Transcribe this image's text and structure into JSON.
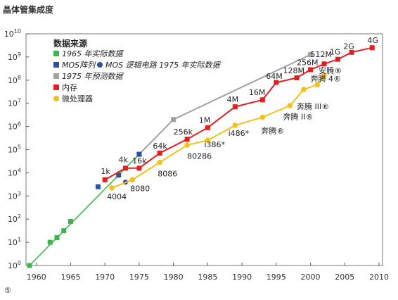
{
  "chart_data": {
    "type": "line",
    "title": "",
    "ylabel": "晶体管集成度",
    "xlabel": "",
    "footnote": "⑤",
    "xlim": [
      1959,
      2010
    ],
    "ylim_exponent": [
      0,
      10
    ],
    "y_scale": "log",
    "x_ticks": [
      1960,
      1965,
      1970,
      1975,
      1980,
      1985,
      1990,
      1995,
      2000,
      2005,
      2010
    ],
    "y_ticks": [
      {
        "exp": 0,
        "label": "10",
        "sup": "0"
      },
      {
        "exp": 1,
        "label": "10",
        "sup": "1"
      },
      {
        "exp": 2,
        "label": "10",
        "sup": "2"
      },
      {
        "exp": 3,
        "label": "10",
        "sup": "3"
      },
      {
        "exp": 4,
        "label": "10",
        "sup": "4"
      },
      {
        "exp": 5,
        "label": "10",
        "sup": "5"
      },
      {
        "exp": 6,
        "label": "10",
        "sup": "6"
      },
      {
        "exp": 7,
        "label": "10",
        "sup": "7"
      },
      {
        "exp": 8,
        "label": "10",
        "sup": "8"
      },
      {
        "exp": 9,
        "label": "10",
        "sup": "9"
      },
      {
        "exp": 10,
        "label": "10",
        "sup": "10"
      }
    ],
    "legend_title": "数据来源",
    "legend": [
      {
        "marker": "square",
        "color": "#3cb54a",
        "text": "1965 年实际数据",
        "italic": true
      },
      {
        "marker": "square",
        "color": "#2f4fa6",
        "text": "MOS阵列",
        "italic": true,
        "extra_marker": "circle",
        "extra_color": "#2f4fa6",
        "extra_text": "MOS 逻辑电路  1975 年实际数据"
      },
      {
        "marker": "square",
        "color": "#a0a0a0",
        "text": "1975 年预测数据",
        "italic": true
      },
      {
        "marker": "square",
        "color": "#e02020",
        "text": "内存",
        "italic": false
      },
      {
        "marker": "circle",
        "color": "#f2c11c",
        "text": "微处理器",
        "italic": false
      }
    ],
    "series": [
      {
        "kind": "green",
        "color": "#3cb54a",
        "line_points": [
          [
            1959,
            0
          ],
          [
            1975,
            4.8
          ]
        ],
        "markers": [
          [
            1959,
            0
          ],
          [
            1962,
            1.0
          ],
          [
            1963,
            1.2
          ],
          [
            1964,
            1.5
          ],
          [
            1965,
            1.9
          ],
          [
            1975,
            4.8
          ]
        ]
      },
      {
        "kind": "gray",
        "color": "#a0a0a0",
        "line_points": [
          [
            1975,
            4.8
          ],
          [
            1980,
            6.3
          ],
          [
            2000,
            9.1
          ]
        ],
        "markers": [
          [
            1980,
            6.3
          ],
          [
            2000,
            9.1
          ]
        ]
      },
      {
        "kind": "blue_squares",
        "color": "#2f4fa6",
        "markers": [
          [
            1969,
            3.4
          ],
          [
            1972,
            3.9
          ],
          [
            1975,
            4.8
          ]
        ]
      },
      {
        "kind": "blue_circles",
        "color": "#2f4fa6",
        "markers": [
          [
            1973,
            3.6
          ]
        ]
      },
      {
        "kind": "memory",
        "color": "#e02020",
        "points": [
          [
            1970,
            3.7
          ],
          [
            1973,
            4.2
          ],
          [
            1975,
            4.2
          ],
          [
            1978,
            4.85
          ],
          [
            1982,
            5.45
          ],
          [
            1985,
            5.95
          ],
          [
            1989,
            6.85
          ],
          [
            1993,
            7.15
          ],
          [
            1995,
            7.9
          ],
          [
            1998,
            8.1
          ],
          [
            2000,
            8.45
          ],
          [
            2002,
            8.7
          ],
          [
            2004,
            8.9
          ],
          [
            2006,
            9.2
          ],
          [
            2009,
            9.4
          ]
        ]
      },
      {
        "kind": "microprocessor",
        "color": "#f2c11c",
        "points": [
          [
            1971,
            3.35
          ],
          [
            1974,
            3.7
          ],
          [
            1978,
            4.45
          ],
          [
            1982,
            5.2
          ],
          [
            1985,
            5.4
          ],
          [
            1989,
            6.05
          ],
          [
            1993,
            6.4
          ],
          [
            1997,
            6.9
          ],
          [
            1999,
            7.6
          ],
          [
            2001,
            7.8
          ],
          [
            2002,
            8.2
          ]
        ]
      }
    ],
    "annotations": [
      {
        "text": "1k",
        "x": 1969.4,
        "y": 3.95
      },
      {
        "text": "4k",
        "x": 1972.0,
        "y": 4.45
      },
      {
        "text": "16k",
        "x": 1974.0,
        "y": 4.4
      },
      {
        "text": "64k",
        "x": 1977.0,
        "y": 5.05
      },
      {
        "text": "256k",
        "x": 1980.0,
        "y": 5.65
      },
      {
        "text": "1M",
        "x": 1983.7,
        "y": 6.15
      },
      {
        "text": "4M",
        "x": 1987.8,
        "y": 7.05
      },
      {
        "text": "16M",
        "x": 1991.0,
        "y": 7.35
      },
      {
        "text": "64M",
        "x": 1993.5,
        "y": 8.05
      },
      {
        "text": "128M",
        "x": 1996.0,
        "y": 8.3
      },
      {
        "text": "256M",
        "x": 1998.0,
        "y": 8.65
      },
      {
        "text": "512M",
        "x": 2000.0,
        "y": 9.0
      },
      {
        "text": "1G",
        "x": 2002.8,
        "y": 9.1
      },
      {
        "text": "2G",
        "x": 2004.8,
        "y": 9.35
      },
      {
        "text": "4G",
        "x": 2008.3,
        "y": 9.6
      },
      {
        "text": "4004",
        "x": 1970.3,
        "y": 2.85
      },
      {
        "text": "8080",
        "x": 1973.7,
        "y": 3.2
      },
      {
        "text": "8086",
        "x": 1977.7,
        "y": 3.85
      },
      {
        "text": "80286",
        "x": 1982.0,
        "y": 4.6
      },
      {
        "text": "i386*",
        "x": 1984.5,
        "y": 5.1
      },
      {
        "text": "i486*",
        "x": 1988.0,
        "y": 5.6
      },
      {
        "text": "奔腾®",
        "x": 1992.8,
        "y": 5.7
      },
      {
        "text": "奔腾 II®",
        "x": 1996.0,
        "y": 6.3
      },
      {
        "text": "奔腾 III®",
        "x": 1998.0,
        "y": 6.75
      },
      {
        "text": "奔腾 4®",
        "x": 2000.0,
        "y": 7.95
      },
      {
        "text": "安腾®",
        "x": 2001.2,
        "y": 8.3
      }
    ]
  }
}
